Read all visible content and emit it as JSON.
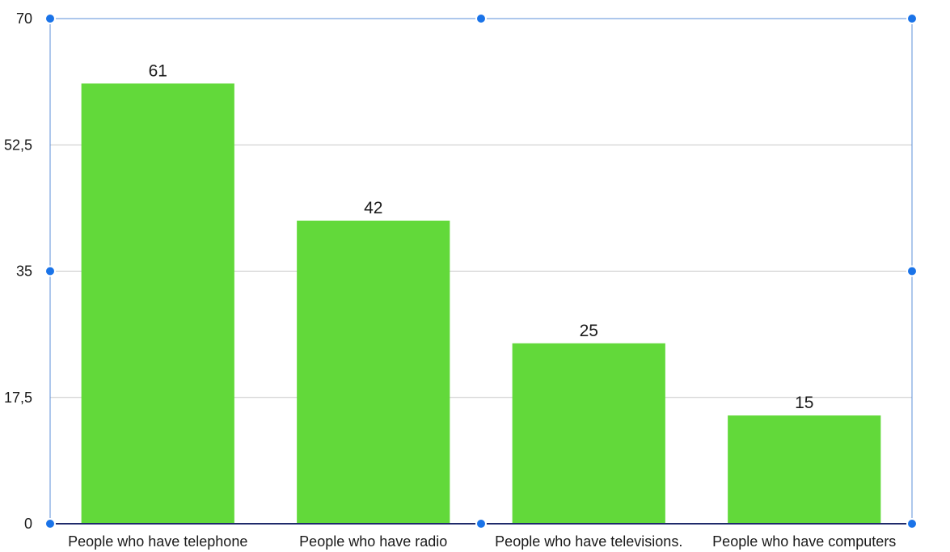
{
  "colors": {
    "bar": "#62d93a",
    "gridline": "#c8c8c8",
    "frame": "#5b8fd9",
    "baseline": "#1f2a6b",
    "handle": "#1a73e8"
  },
  "selection": {
    "handles_visible": true
  },
  "chart_data": {
    "type": "bar",
    "title": "",
    "xlabel": "",
    "ylabel": "",
    "ylim": [
      0,
      70
    ],
    "yticks": [
      0,
      17.5,
      35,
      52.5,
      70
    ],
    "ytick_labels": [
      "0",
      "17,5",
      "35",
      "52,5",
      "70"
    ],
    "grid": true,
    "legend": "none",
    "categories": [
      "People who have telephone",
      "People who have radio",
      "People who have televisions.",
      "People who have computers"
    ],
    "values": [
      61,
      42,
      25,
      15
    ],
    "value_labels": [
      "61",
      "42",
      "25",
      "15"
    ]
  }
}
